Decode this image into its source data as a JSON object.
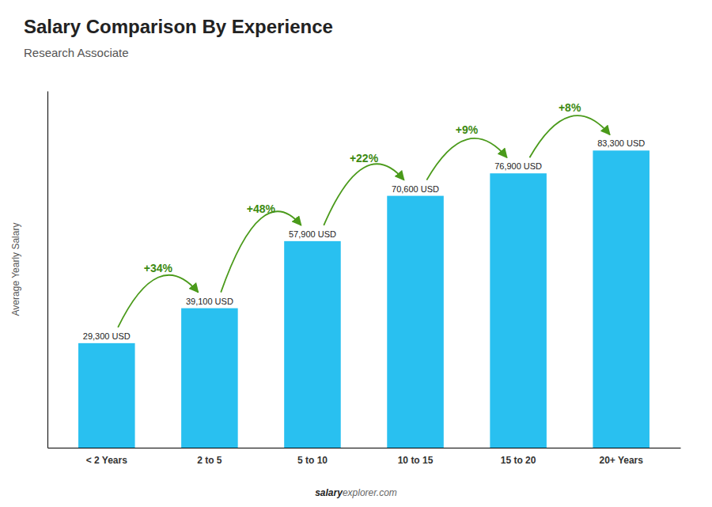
{
  "chart_data": {
    "type": "bar",
    "title": "Salary Comparison By Experience",
    "subtitle": "Research Associate",
    "categories": [
      "< 2 Years",
      "2 to 5",
      "5 to 10",
      "10 to 15",
      "15 to 20",
      "20+ Years"
    ],
    "values": [
      29300,
      39100,
      57900,
      70600,
      76900,
      83300
    ],
    "value_labels": [
      "29,300 USD",
      "39,100 USD",
      "57,900 USD",
      "70,600 USD",
      "76,900 USD",
      "83,300 USD"
    ],
    "data_labels": true,
    "color": "#29c0f0",
    "y_label": "Average Yearly Salary",
    "ylim": [
      0,
      100000
    ],
    "tick_labels": "x",
    "grid": false,
    "annotations": [
      "+34%",
      "+48%",
      "+22%",
      "+9%",
      "+8%"
    ],
    "footer": [
      "salary",
      "explorer.com"
    ]
  }
}
